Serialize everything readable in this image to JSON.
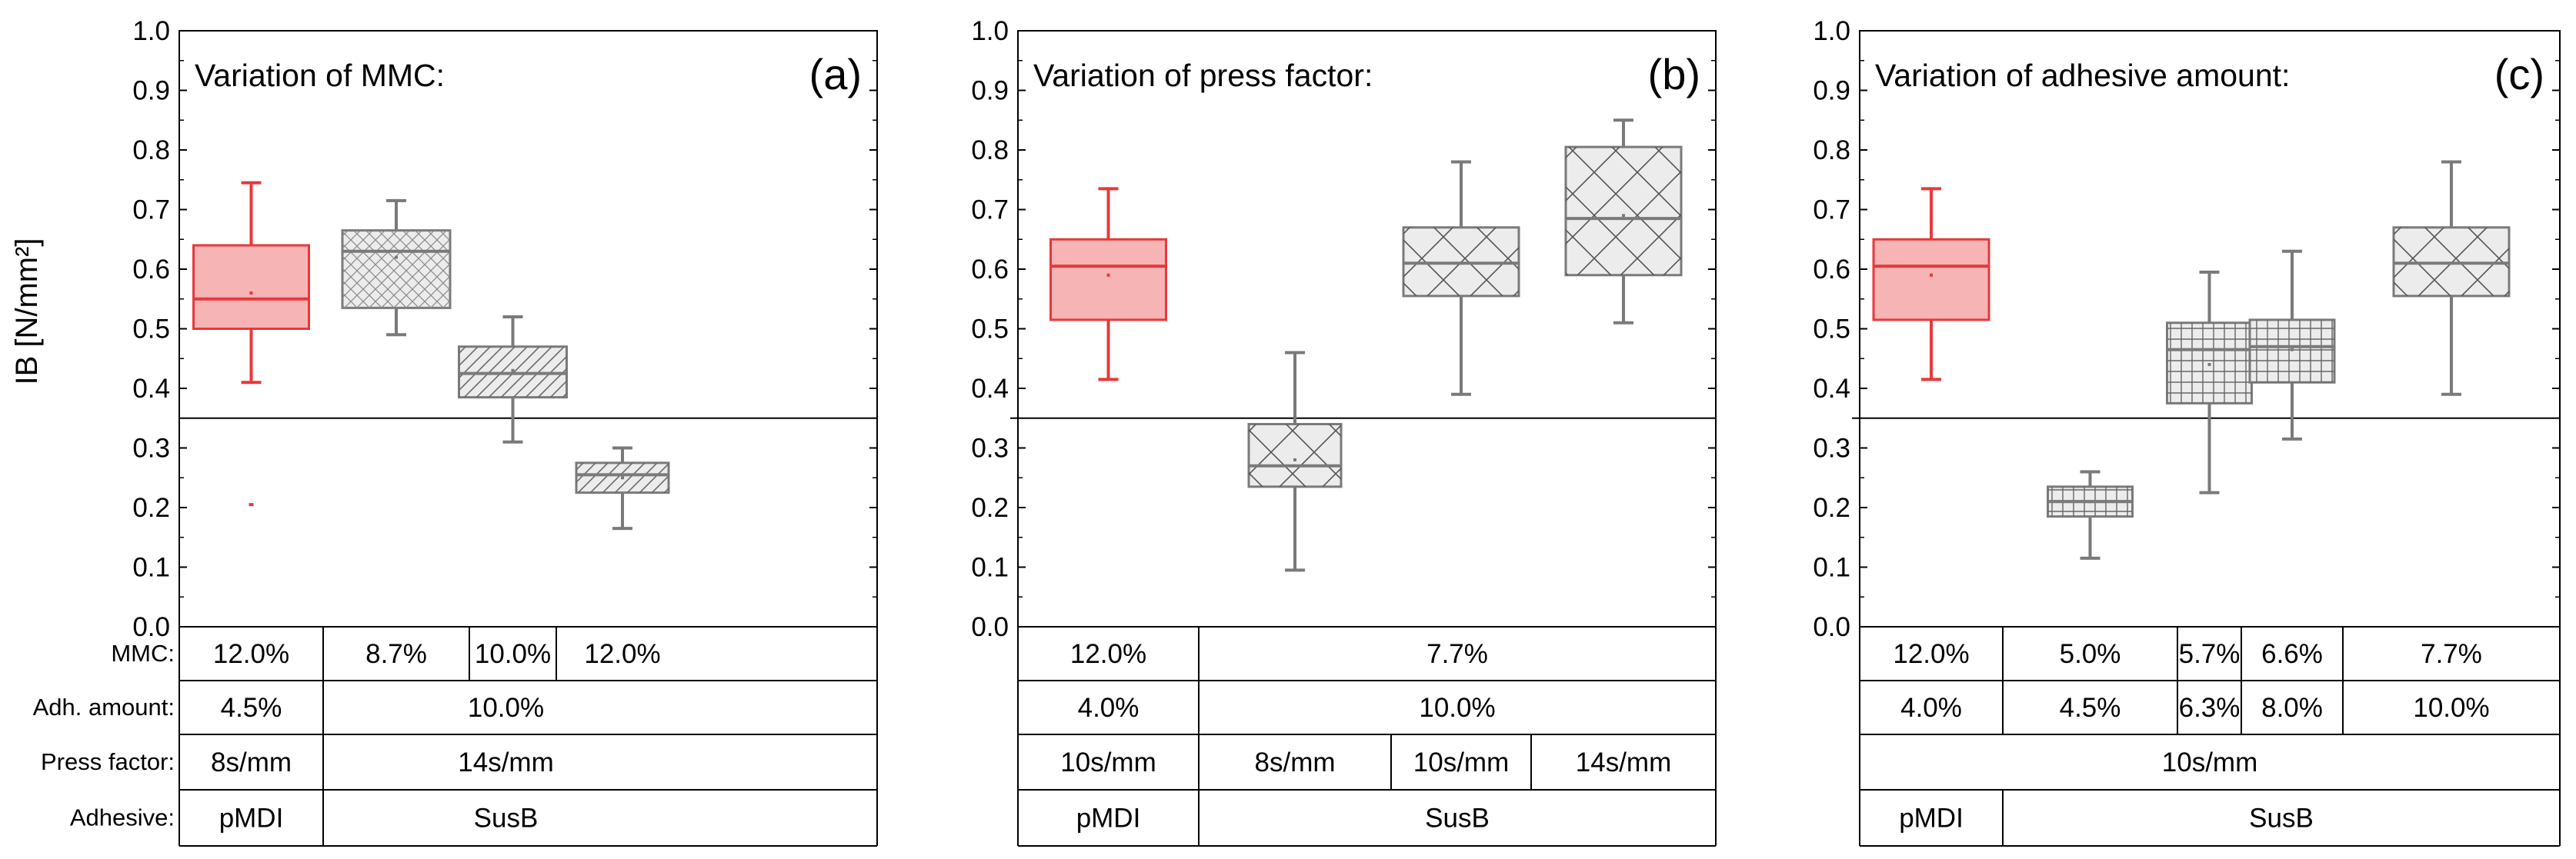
{
  "y_axis_label": "IB [N/mm²]",
  "row_labels": [
    "MMC:",
    "Adh. amount:",
    "Press factor:",
    "Adhesive:"
  ],
  "colors": {
    "reference": "#e8383a",
    "reference_fill": "#f7b4b5",
    "susb": "#7a7a7a",
    "susb_fill": "#ececec"
  },
  "chart_data": [
    {
      "type": "box",
      "title": "Variation of MMC:",
      "panel_letter": "(a)",
      "ylabel": "IB [N/mm²]",
      "ylim": [
        0,
        1.0
      ],
      "yticks": [
        "0.0",
        "0.1",
        "0.2",
        "0.3",
        "0.4",
        "0.5",
        "0.6",
        "0.7",
        "0.8",
        "0.9",
        "1.0"
      ],
      "reference_line": 0.35,
      "boxes": [
        {
          "name": "pMDI 12.0%",
          "min": 0.41,
          "q1": 0.5,
          "median": 0.55,
          "q3": 0.64,
          "max": 0.745,
          "mean": 0.56,
          "outliers": [
            0.205
          ],
          "style": "reference",
          "pattern": "none"
        },
        {
          "name": "SusB 8.7%",
          "min": 0.49,
          "q1": 0.535,
          "median": 0.63,
          "q3": 0.665,
          "max": 0.715,
          "mean": 0.62,
          "outliers": [],
          "style": "susb",
          "pattern": "fine-cross"
        },
        {
          "name": "SusB 10.0%",
          "min": 0.31,
          "q1": 0.385,
          "median": 0.425,
          "q3": 0.47,
          "max": 0.52,
          "mean": 0.43,
          "outliers": [],
          "style": "susb",
          "pattern": "diag"
        },
        {
          "name": "SusB 12.0%",
          "min": 0.165,
          "q1": 0.225,
          "median": 0.255,
          "q3": 0.275,
          "max": 0.3,
          "mean": 0.25,
          "outliers": [],
          "style": "susb",
          "pattern": "diag"
        }
      ],
      "table": [
        {
          "label": "MMC:",
          "cells": [
            "12.0%",
            "8.7%",
            "10.0%",
            "12.0%"
          ],
          "spans": [
            1,
            1,
            1,
            1
          ]
        },
        {
          "label": "Adh. amount:",
          "cells": [
            "4.5%",
            "10.0%"
          ],
          "spans": [
            1,
            3
          ]
        },
        {
          "label": "Press factor:",
          "cells": [
            "8s/mm",
            "14s/mm"
          ],
          "spans": [
            1,
            3
          ]
        },
        {
          "label": "Adhesive:",
          "cells": [
            "pMDI",
            "SusB"
          ],
          "spans": [
            1,
            3
          ]
        }
      ]
    },
    {
      "type": "box",
      "title": "Variation of press factor:",
      "panel_letter": "(b)",
      "ylabel": "",
      "ylim": [
        0,
        1.0
      ],
      "yticks": [
        "0.0",
        "0.1",
        "0.2",
        "0.3",
        "0.4",
        "0.5",
        "0.6",
        "0.7",
        "0.8",
        "0.9",
        "1.0"
      ],
      "reference_line": 0.35,
      "boxes": [
        {
          "name": "pMDI 10s/mm",
          "min": 0.415,
          "q1": 0.515,
          "median": 0.605,
          "q3": 0.65,
          "max": 0.735,
          "mean": 0.59,
          "outliers": [],
          "style": "reference",
          "pattern": "none"
        },
        {
          "name": "SusB 8s/mm",
          "min": 0.095,
          "q1": 0.235,
          "median": 0.27,
          "q3": 0.34,
          "max": 0.46,
          "mean": 0.28,
          "outliers": [],
          "style": "susb",
          "pattern": "big-cross"
        },
        {
          "name": "SusB 10s/mm",
          "min": 0.39,
          "q1": 0.555,
          "median": 0.61,
          "q3": 0.67,
          "max": 0.78,
          "mean": 0.61,
          "outliers": [],
          "style": "susb",
          "pattern": "big-cross"
        },
        {
          "name": "SusB 14s/mm",
          "min": 0.51,
          "q1": 0.59,
          "median": 0.685,
          "q3": 0.805,
          "max": 0.85,
          "mean": 0.69,
          "outliers": [],
          "style": "susb",
          "pattern": "big-cross"
        }
      ],
      "table": [
        {
          "label": "",
          "cells": [
            "12.0%",
            "7.7%"
          ],
          "spans": [
            1,
            3
          ]
        },
        {
          "label": "",
          "cells": [
            "4.0%",
            "10.0%"
          ],
          "spans": [
            1,
            3
          ]
        },
        {
          "label": "",
          "cells": [
            "10s/mm",
            "8s/mm",
            "10s/mm",
            "14s/mm"
          ],
          "spans": [
            1,
            1,
            1,
            1
          ]
        },
        {
          "label": "",
          "cells": [
            "pMDI",
            "SusB"
          ],
          "spans": [
            1,
            3
          ]
        }
      ]
    },
    {
      "type": "box",
      "title": "Variation of adhesive amount:",
      "panel_letter": "(c)",
      "ylabel": "",
      "ylim": [
        0,
        1.0
      ],
      "yticks": [
        "0.0",
        "0.1",
        "0.2",
        "0.3",
        "0.4",
        "0.5",
        "0.6",
        "0.7",
        "0.8",
        "0.9",
        "1.0"
      ],
      "reference_line": 0.35,
      "boxes": [
        {
          "name": "pMDI 4.0%",
          "min": 0.415,
          "q1": 0.515,
          "median": 0.605,
          "q3": 0.65,
          "max": 0.735,
          "mean": 0.59,
          "outliers": [],
          "style": "reference",
          "pattern": "none"
        },
        {
          "name": "SusB 4.5%",
          "min": 0.115,
          "q1": 0.185,
          "median": 0.21,
          "q3": 0.235,
          "max": 0.26,
          "mean": 0.21,
          "outliers": [],
          "style": "susb",
          "pattern": "grid"
        },
        {
          "name": "SusB 6.3%",
          "min": 0.225,
          "q1": 0.375,
          "median": 0.465,
          "q3": 0.51,
          "max": 0.595,
          "mean": 0.44,
          "outliers": [],
          "style": "susb",
          "pattern": "grid"
        },
        {
          "name": "SusB 8.0%",
          "min": 0.315,
          "q1": 0.41,
          "median": 0.47,
          "q3": 0.515,
          "max": 0.63,
          "mean": 0.465,
          "outliers": [],
          "style": "susb",
          "pattern": "grid"
        },
        {
          "name": "SusB 10.0%",
          "min": 0.39,
          "q1": 0.555,
          "median": 0.61,
          "q3": 0.67,
          "max": 0.78,
          "mean": 0.61,
          "outliers": [],
          "style": "susb",
          "pattern": "big-cross"
        }
      ],
      "table": [
        {
          "label": "",
          "cells": [
            "12.0%",
            "5.0%",
            "5.7%",
            "6.6%",
            "7.7%"
          ],
          "spans": [
            1,
            1,
            1,
            1,
            1
          ]
        },
        {
          "label": "",
          "cells": [
            "4.0%",
            "4.5%",
            "6.3%",
            "8.0%",
            "10.0%"
          ],
          "spans": [
            1,
            1,
            1,
            1,
            1
          ]
        },
        {
          "label": "",
          "cells": [
            "10s/mm"
          ],
          "spans": [
            5
          ]
        },
        {
          "label": "",
          "cells": [
            "pMDI",
            "SusB"
          ],
          "spans": [
            1,
            4
          ]
        }
      ]
    }
  ]
}
